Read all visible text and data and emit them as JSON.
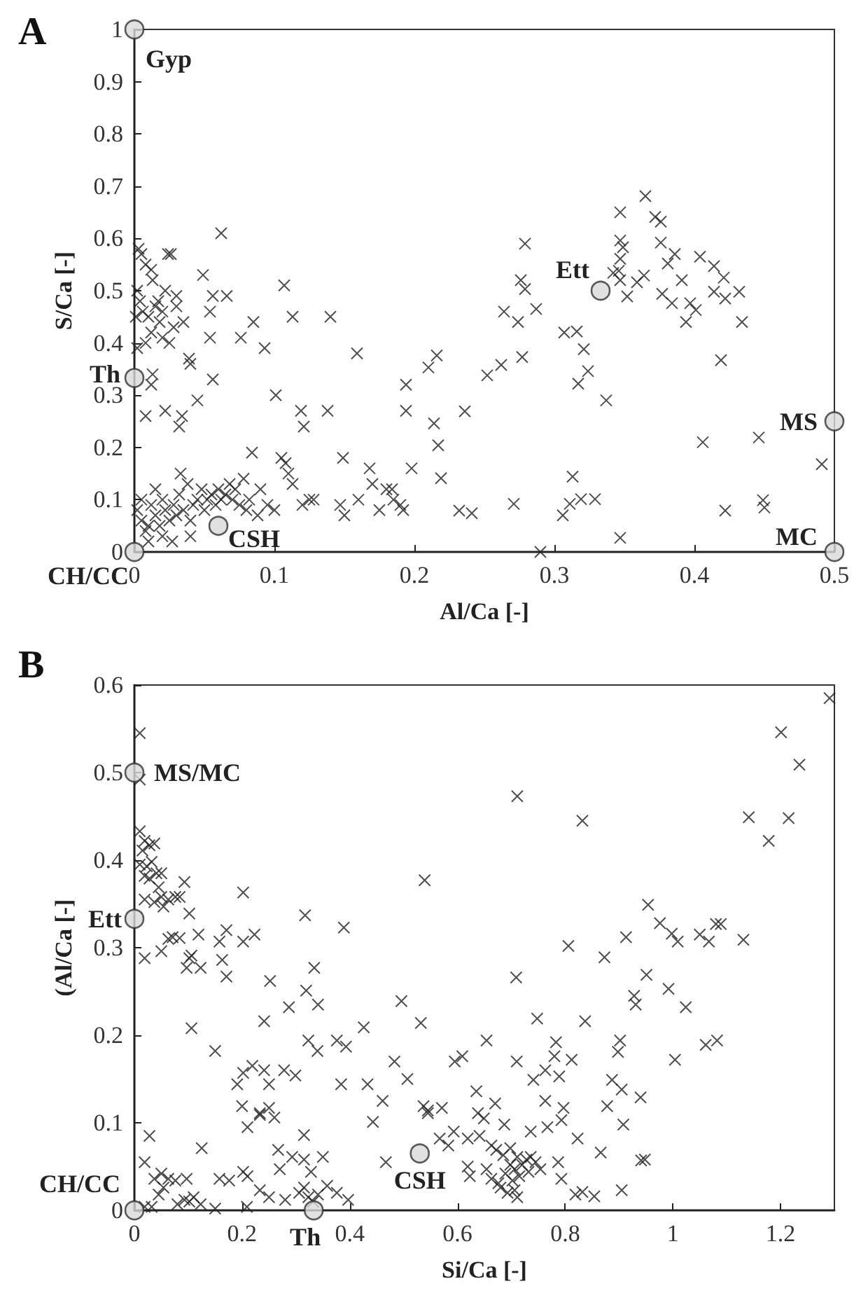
{
  "chart_data": [
    {
      "type": "scatter",
      "title": "A",
      "xlabel": "Al/Ca [-]",
      "ylabel": "S/Ca [-]",
      "xlim": [
        0,
        0.5
      ],
      "xticks": [
        0,
        0.1,
        0.2,
        0.3,
        0.4,
        0.5
      ],
      "ylim": [
        0,
        1
      ],
      "yticks": [
        0,
        0.1,
        0.2,
        0.3,
        0.4,
        0.5,
        0.6,
        0.7,
        0.8,
        0.9,
        1
      ],
      "grid": false,
      "series": [
        {
          "color": "#222222",
          "marker": "cross",
          "x": [
            0.003,
            0.005,
            0.008,
            0.012,
            0.002,
            0.004,
            0.006,
            0.01,
            0.015,
            0.02,
            0.018,
            0.012,
            0.008,
            0.02,
            0.025,
            0.028,
            0.022,
            0.03,
            0.024,
            0.026,
            0.03,
            0.035,
            0.002,
            0.013,
            0.017,
            0.001,
            0.062,
            0.049,
            0.056,
            0.054,
            0.054,
            0.066,
            0.076,
            0.085,
            0.093,
            0.107,
            0.113,
            0.14,
            0.159,
            0.039,
            0.04,
            0.056,
            0.045,
            0.034,
            0.032,
            0.022,
            0.008,
            0.012,
            0.013,
            0.101,
            0.119,
            0.121,
            0.138,
            0.194,
            0.194,
            0.198,
            0.149,
            0.002,
            0.005,
            0.008,
            0.01,
            0.012,
            0.015,
            0.018,
            0.02,
            0.02,
            0.022,
            0.025,
            0.028,
            0.03,
            0.032,
            0.033,
            0.035,
            0.038,
            0.04,
            0.04,
            0.042,
            0.045,
            0.048,
            0.05,
            0.052,
            0.055,
            0.058,
            0.06,
            0.062,
            0.065,
            0.068,
            0.07,
            0.072,
            0.075,
            0.078,
            0.08,
            0.082,
            0.084,
            0.088,
            0.09,
            0.095,
            0.1,
            0.015,
            0.01,
            0.005,
            0.027,
            0.105,
            0.108,
            0.11,
            0.113,
            0.12,
            0.125,
            0.128,
            0.147,
            0.15,
            0.16,
            0.168,
            0.17,
            0.175,
            0.18,
            0.185,
            0.19,
            0.192,
            0.184,
            0.21,
            0.216,
            0.214,
            0.217,
            0.219,
            0.236,
            0.232,
            0.241,
            0.252,
            0.262,
            0.271,
            0.264,
            0.274,
            0.279,
            0.276,
            0.279,
            0.277,
            0.287,
            0.29,
            0.307,
            0.316,
            0.321,
            0.324,
            0.317,
            0.337,
            0.313,
            0.306,
            0.311,
            0.319,
            0.329,
            0.347,
            0.347,
            0.365,
            0.372,
            0.376,
            0.347,
            0.349,
            0.347,
            0.346,
            0.347,
            0.352,
            0.359,
            0.364,
            0.376,
            0.386,
            0.381,
            0.391,
            0.377,
            0.384,
            0.397,
            0.401,
            0.394,
            0.404,
            0.414,
            0.421,
            0.414,
            0.422,
            0.432,
            0.434,
            0.419,
            0.406,
            0.446,
            0.491,
            0.422,
            0.449,
            0.45,
            0.342
          ],
          "values": [
            0.58,
            0.57,
            0.55,
            0.54,
            0.5,
            0.48,
            0.46,
            0.45,
            0.47,
            0.46,
            0.44,
            0.42,
            0.4,
            0.41,
            0.4,
            0.43,
            0.5,
            0.49,
            0.57,
            0.57,
            0.47,
            0.44,
            0.39,
            0.52,
            0.48,
            0.45,
            0.61,
            0.53,
            0.49,
            0.46,
            0.41,
            0.49,
            0.41,
            0.44,
            0.39,
            0.51,
            0.45,
            0.45,
            0.38,
            0.37,
            0.36,
            0.33,
            0.29,
            0.26,
            0.24,
            0.27,
            0.26,
            0.32,
            0.34,
            0.3,
            0.27,
            0.24,
            0.27,
            0.32,
            0.27,
            0.16,
            0.18,
            0.08,
            0.06,
            0.04,
            0.02,
            0.09,
            0.07,
            0.05,
            0.1,
            0.03,
            0.08,
            0.06,
            0.09,
            0.07,
            0.11,
            0.15,
            0.08,
            0.13,
            0.06,
            0.03,
            0.09,
            0.1,
            0.12,
            0.08,
            0.1,
            0.11,
            0.09,
            0.12,
            0.1,
            0.11,
            0.13,
            0.1,
            0.12,
            0.09,
            0.14,
            0.08,
            0.1,
            0.19,
            0.07,
            0.12,
            0.09,
            0.08,
            0.12,
            0.05,
            0.1,
            0.02,
            0.18,
            0.17,
            0.15,
            0.13,
            0.09,
            0.1,
            0.1,
            0.09,
            0.07,
            0.1,
            0.16,
            0.13,
            0.08,
            0.12,
            0.1,
            0.09,
            0.08,
            0.12,
            0.353,
            0.376,
            0.246,
            0.204,
            0.141,
            0.269,
            0.079,
            0.074,
            0.338,
            0.358,
            0.092,
            0.46,
            0.44,
            0.59,
            0.52,
            0.503,
            0.373,
            0.465,
            0.0,
            0.42,
            0.422,
            0.388,
            0.346,
            0.322,
            0.29,
            0.144,
            0.07,
            0.092,
            0.101,
            0.101,
            0.027,
            0.65,
            0.681,
            0.641,
            0.632,
            0.596,
            0.583,
            0.561,
            0.538,
            0.52,
            0.489,
            0.516,
            0.529,
            0.592,
            0.57,
            0.552,
            0.52,
            0.494,
            0.476,
            0.476,
            0.463,
            0.44,
            0.565,
            0.547,
            0.525,
            0.498,
            0.485,
            0.498,
            0.44,
            0.367,
            0.21,
            0.219,
            0.168,
            0.079,
            0.099,
            0.085,
            0.534
          ]
        },
        {
          "color": "#d9d9d9",
          "marker": "circle",
          "x": [
            0,
            0,
            0.333,
            0.5,
            0.5,
            0,
            0.06
          ],
          "values": [
            1,
            0.333,
            0.5,
            0.25,
            0,
            0,
            0.05
          ]
        }
      ],
      "annotations": [
        {
          "text": "Gyp",
          "x": 0,
          "y": 1
        },
        {
          "text": "Th",
          "x": 0,
          "y": 0.333
        },
        {
          "text": "Ett",
          "x": 0.333,
          "y": 0.5
        },
        {
          "text": "MS",
          "x": 0.5,
          "y": 0.25
        },
        {
          "text": "MC",
          "x": 0.5,
          "y": 0
        },
        {
          "text": "CH/CC",
          "x": 0,
          "y": 0
        },
        {
          "text": "CSH",
          "x": 0.06,
          "y": 0.05
        }
      ]
    },
    {
      "type": "scatter",
      "title": "B",
      "xlabel": "Si/Ca [-]",
      "ylabel": "(Al/Ca [-]",
      "xlim": [
        0,
        1.3
      ],
      "xticks": [
        0,
        0.2,
        0.4,
        0.6,
        0.8,
        1,
        1.2
      ],
      "ylim": [
        0,
        0.6
      ],
      "yticks": [
        0,
        0.1,
        0.2,
        0.3,
        0.4,
        0.5,
        0.6
      ],
      "grid": false,
      "series": [
        {
          "color": "#222222",
          "marker": "cross",
          "x": [
            0.01,
            0.01,
            0.01,
            0.019,
            0.028,
            0.015,
            0.037,
            0.01,
            0.023,
            0.032,
            0.019,
            0.041,
            0.05,
            0.028,
            0.045,
            0.019,
            0.037,
            0.054,
            0.05,
            0.063,
            0.076,
            0.093,
            0.102,
            0.084,
            0.019,
            0.05,
            0.063,
            0.071,
            0.084,
            0.097,
            0.102,
            0.106,
            0.119,
            0.123,
            0.106,
            0.15,
            0.158,
            0.163,
            0.171,
            0.171,
            0.202,
            0.223,
            0.202,
            0.252,
            0.241,
            0.287,
            0.317,
            0.319,
            0.334,
            0.341,
            0.323,
            0.34,
            0.376,
            0.389,
            0.393,
            0.384,
            0.426,
            0.433,
            0.461,
            0.443,
            0.496,
            0.483,
            0.507,
            0.532,
            0.539,
            0.537,
            0.545,
            0.467,
            0.191,
            0.202,
            0.219,
            0.241,
            0.25,
            0.278,
            0.299,
            0.2,
            0.21,
            0.233,
            0.25,
            0.26,
            0.233,
            0.028,
            0.019,
            0.125,
            0.267,
            0.315,
            0.293,
            0.315,
            0.328,
            0.35,
            0.27,
            0.202,
            0.21,
            0.158,
            0.176,
            0.233,
            0.25,
            0.28,
            0.306,
            0.358,
            0.376,
            0.397,
            0.209,
            0.15,
            0.037,
            0.05,
            0.063,
            0.076,
            0.097,
            0.054,
            0.045,
            0.093,
            0.102,
            0.11,
            0.123,
            0.019,
            0.032,
            0.08,
            0.323,
            0.332,
            0.341,
            0.315,
            1.291,
            1.201,
            1.235,
            1.141,
            1.215,
            1.178,
            0.711,
            0.832,
            0.954,
            0.976,
            0.998,
            1.009,
            1.05,
            1.067,
            1.08,
            1.089,
            1.131,
            0.913,
            0.806,
            0.873,
            0.951,
            0.709,
            0.992,
            0.928,
            0.931,
            1.024,
            0.748,
            0.837,
            0.654,
            0.783,
            0.902,
            0.898,
            1.061,
            1.082,
            1.004,
            0.595,
            0.609,
            0.71,
            0.812,
            0.78,
            0.763,
            0.741,
            0.789,
            0.887,
            0.905,
            0.94,
            0.635,
            0.878,
            0.67,
            0.763,
            0.797,
            0.908,
            0.638,
            0.649,
            0.687,
            0.767,
            0.793,
            0.736,
            0.571,
            0.545,
            0.567,
            0.593,
            0.583,
            0.619,
            0.641,
            0.823,
            0.866,
            0.941,
            0.948,
            0.905,
            0.819,
            0.832,
            0.854,
            0.787,
            0.793,
            0.663,
            0.672,
            0.685,
            0.698,
            0.711,
            0.72,
            0.728,
            0.736,
            0.745,
            0.754,
            0.654,
            0.663,
            0.676,
            0.689,
            0.702,
            0.706,
            0.693,
            0.68,
            0.619,
            0.623,
            0.706,
            0.715,
            0.732,
            0.698,
            0.711
          ],
          "values": [
            0.545,
            0.492,
            0.433,
            0.422,
            0.417,
            0.411,
            0.419,
            0.395,
            0.393,
            0.398,
            0.382,
            0.385,
            0.385,
            0.379,
            0.369,
            0.355,
            0.352,
            0.347,
            0.358,
            0.355,
            0.358,
            0.375,
            0.339,
            0.358,
            0.288,
            0.296,
            0.31,
            0.312,
            0.311,
            0.277,
            0.288,
            0.291,
            0.315,
            0.277,
            0.208,
            0.182,
            0.307,
            0.286,
            0.32,
            0.267,
            0.307,
            0.315,
            0.363,
            0.262,
            0.216,
            0.232,
            0.337,
            0.251,
            0.277,
            0.235,
            0.194,
            0.182,
            0.194,
            0.323,
            0.187,
            0.144,
            0.209,
            0.144,
            0.125,
            0.101,
            0.239,
            0.17,
            0.15,
            0.214,
            0.377,
            0.119,
            0.111,
            0.055,
            0.144,
            0.157,
            0.165,
            0.16,
            0.144,
            0.16,
            0.154,
            0.119,
            0.095,
            0.111,
            0.117,
            0.106,
            0.109,
            0.085,
            0.055,
            0.071,
            0.069,
            0.086,
            0.061,
            0.058,
            0.044,
            0.061,
            0.047,
            0.044,
            0.039,
            0.036,
            0.034,
            0.023,
            0.015,
            0.012,
            0.02,
            0.028,
            0.02,
            0.012,
            0.004,
            0.002,
            0.036,
            0.042,
            0.036,
            0.034,
            0.036,
            0.026,
            0.018,
            0.012,
            0.01,
            0.015,
            0.007,
            0.004,
            0.004,
            0.007,
            0.015,
            0.01,
            0.018,
            0.026,
            0.585,
            0.546,
            0.509,
            0.449,
            0.448,
            0.422,
            0.473,
            0.445,
            0.349,
            0.328,
            0.316,
            0.307,
            0.315,
            0.307,
            0.327,
            0.327,
            0.309,
            0.312,
            0.302,
            0.289,
            0.269,
            0.266,
            0.253,
            0.245,
            0.235,
            0.232,
            0.219,
            0.216,
            0.194,
            0.192,
            0.194,
            0.181,
            0.189,
            0.194,
            0.172,
            0.17,
            0.176,
            0.17,
            0.172,
            0.176,
            0.16,
            0.149,
            0.153,
            0.149,
            0.138,
            0.129,
            0.136,
            0.119,
            0.122,
            0.125,
            0.117,
            0.098,
            0.111,
            0.105,
            0.098,
            0.095,
            0.103,
            0.09,
            0.117,
            0.114,
            0.082,
            0.09,
            0.074,
            0.082,
            0.085,
            0.082,
            0.066,
            0.057,
            0.058,
            0.023,
            0.018,
            0.021,
            0.016,
            0.055,
            0.036,
            0.074,
            0.069,
            0.063,
            0.071,
            0.061,
            0.052,
            0.058,
            0.061,
            0.055,
            0.047,
            0.047,
            0.036,
            0.031,
            0.042,
            0.034,
            0.023,
            0.02,
            0.026,
            0.05,
            0.039,
            0.047,
            0.039,
            0.044,
            0.052,
            0.015
          ]
        },
        {
          "color": "#d9d9d9",
          "marker": "circle",
          "x": [
            0,
            0,
            0,
            0.333,
            0.53
          ],
          "values": [
            0.5,
            0.333,
            0,
            0,
            0.065
          ]
        }
      ],
      "annotations": [
        {
          "text": "MS/MC",
          "x": 0,
          "y": 0.5
        },
        {
          "text": "Ett",
          "x": 0,
          "y": 0.333
        },
        {
          "text": "CH/CC",
          "x": 0,
          "y": 0
        },
        {
          "text": "Th",
          "x": 0.333,
          "y": 0
        },
        {
          "text": "CSH",
          "x": 0.53,
          "y": 0.065
        }
      ]
    }
  ]
}
